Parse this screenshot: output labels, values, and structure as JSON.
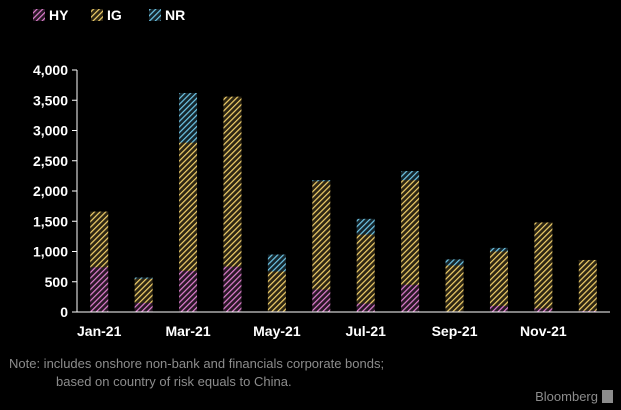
{
  "chart_data": {
    "type": "bar",
    "stacked": true,
    "title": "",
    "xlabel": "",
    "ylabel": "",
    "categories": [
      "Jan-21",
      "Feb-21",
      "Mar-21",
      "Apr-21",
      "May-21",
      "Jun-21",
      "Jul-21",
      "Aug-21",
      "Sep-21",
      "Oct-21",
      "Nov-21",
      "Dec-21"
    ],
    "x_tick_labels": [
      "Jan-21",
      "Mar-21",
      "May-21",
      "Jul-21",
      "Sep-21",
      "Nov-21"
    ],
    "series": [
      {
        "name": "HY",
        "color": "#e07fd0",
        "values": [
          740,
          150,
          680,
          750,
          10,
          370,
          140,
          450,
          10,
          100,
          60,
          20
        ]
      },
      {
        "name": "IG",
        "color": "#f2d06b",
        "values": [
          920,
          400,
          2120,
          2810,
          660,
          1790,
          1140,
          1730,
          760,
          900,
          1420,
          840
        ]
      },
      {
        "name": "NR",
        "color": "#6fc6e8",
        "values": [
          0,
          20,
          820,
          0,
          280,
          20,
          260,
          150,
          100,
          60,
          0,
          0
        ]
      }
    ],
    "ylim": [
      0,
      4000
    ],
    "yticks": [
      0,
      500,
      1000,
      1500,
      2000,
      2500,
      3000,
      3500,
      4000
    ],
    "ytick_labels": [
      "0",
      "500",
      "1,000",
      "1,500",
      "2,000",
      "2,500",
      "3,000",
      "3,500",
      "4,000"
    ],
    "grid": false,
    "legend": "top-left"
  },
  "note": {
    "line1": "Note: includes onshore non-bank and financials corporate bonds;",
    "line2": "based on country of risk equals to China."
  },
  "source": {
    "label": "Bloomberg"
  }
}
